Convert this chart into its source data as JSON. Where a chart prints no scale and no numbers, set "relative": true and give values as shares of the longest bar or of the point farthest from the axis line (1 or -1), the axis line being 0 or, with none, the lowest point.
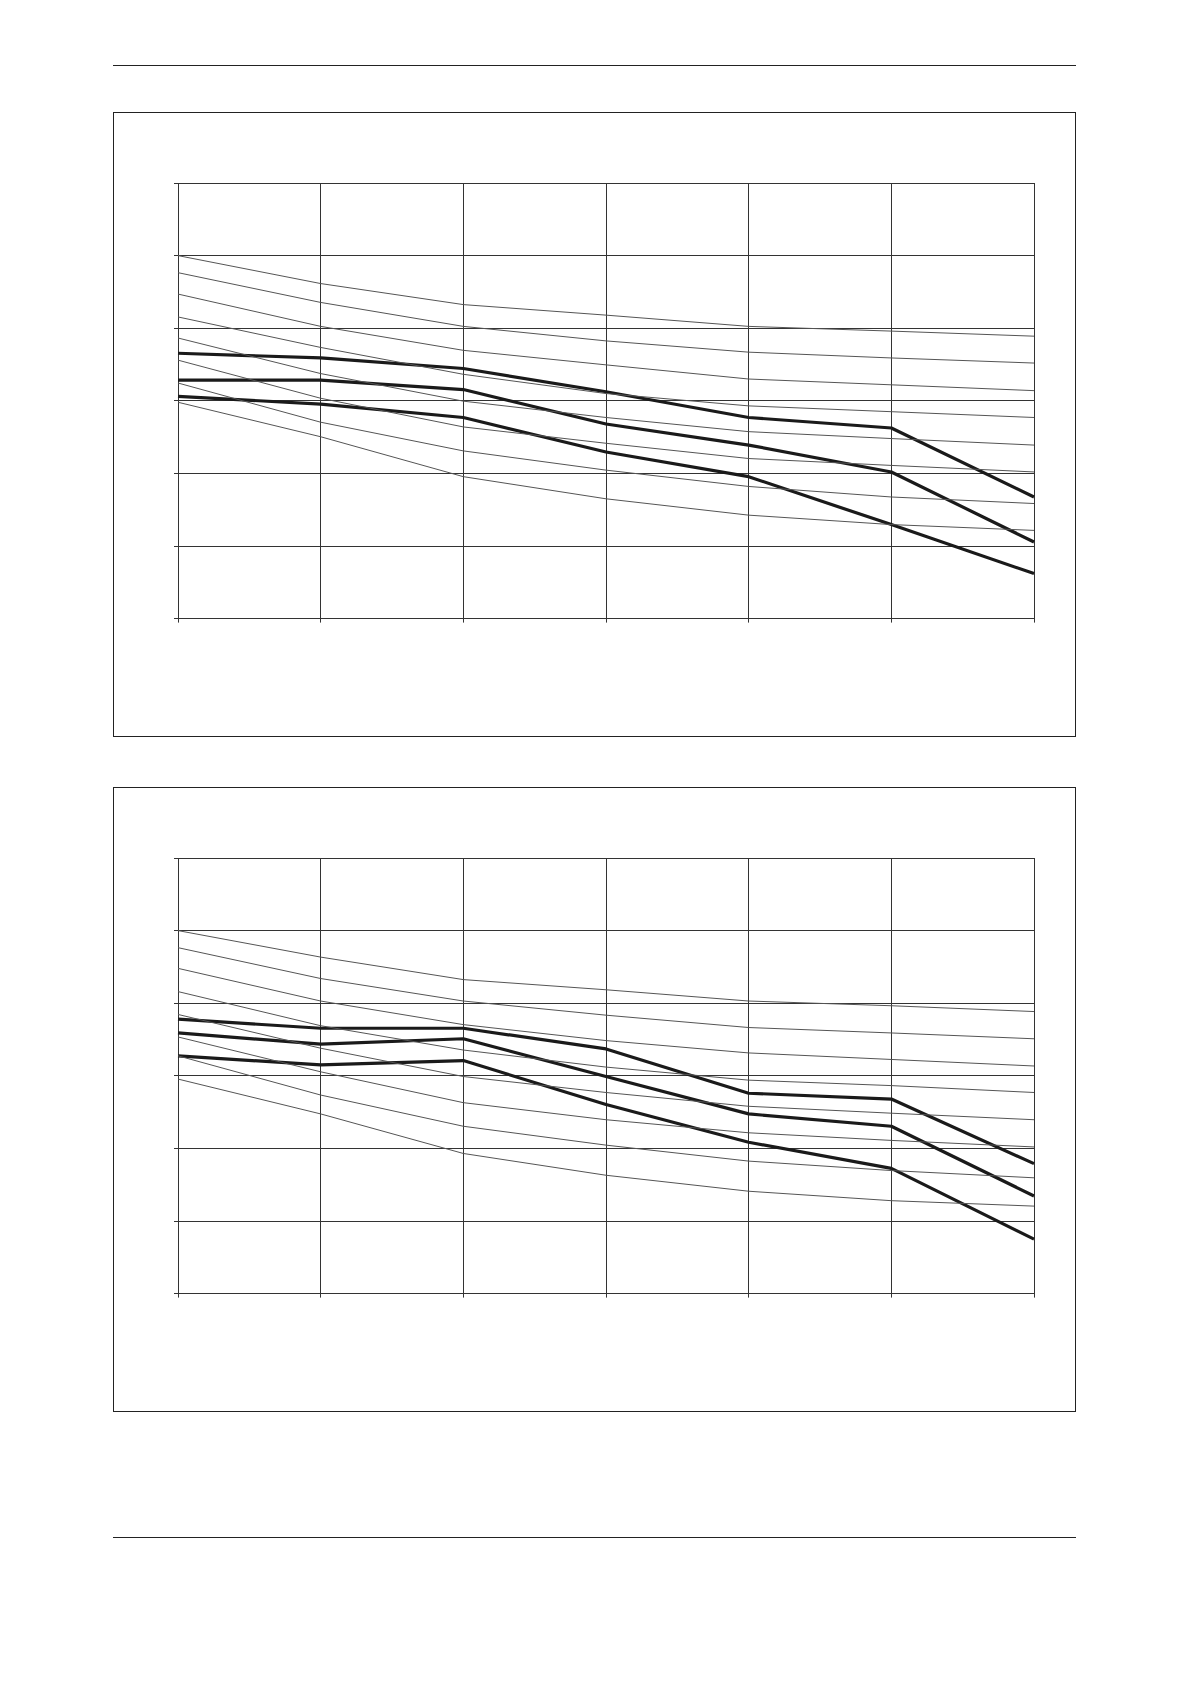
{
  "chart_data": [
    {
      "type": "line",
      "relative": true,
      "grid": true,
      "legend": false,
      "marker": "none",
      "line_style": "solid",
      "categories": [
        null,
        null,
        null,
        null,
        null,
        null,
        null
      ],
      "series": [
        {
          "color": "#555555",
          "values": [
            1,
            0.923,
            0.865,
            0.836,
            0.805,
            0.792,
            0.778
          ]
        },
        {
          "color": "#555555",
          "values": [
            0.953,
            0.871,
            0.805,
            0.765,
            0.734,
            0.718,
            0.704
          ]
        },
        {
          "color": "#555555",
          "values": [
            0.894,
            0.805,
            0.739,
            0.699,
            0.66,
            0.644,
            0.628
          ]
        },
        {
          "color": "#555555",
          "values": [
            0.831,
            0.747,
            0.673,
            0.62,
            0.586,
            0.57,
            0.554
          ]
        },
        {
          "color": "#555555",
          "values": [
            0.773,
            0.675,
            0.599,
            0.554,
            0.515,
            0.496,
            0.478
          ]
        },
        {
          "color": "#555555",
          "values": [
            0.712,
            0.607,
            0.528,
            0.483,
            0.441,
            0.422,
            0.404
          ]
        },
        {
          "color": "#555555",
          "values": [
            0.649,
            0.541,
            0.462,
            0.409,
            0.364,
            0.335,
            0.317
          ]
        },
        {
          "color": "#555555",
          "values": [
            0.596,
            0.501,
            0.391,
            0.33,
            0.285,
            0.259,
            0.243
          ]
        },
        {
          "color": "#1a1a1a",
          "values": [
            0.731,
            0.718,
            0.689,
            0.625,
            0.554,
            0.525,
            0.335
          ]
        },
        {
          "color": "#1a1a1a",
          "values": [
            0.657,
            0.657,
            0.631,
            0.536,
            0.478,
            0.404,
            0.211
          ]
        },
        {
          "color": "#1a1a1a",
          "values": [
            0.612,
            0.591,
            0.554,
            0.459,
            0.391,
            0.259,
            0.124
          ]
        }
      ]
    },
    {
      "type": "line",
      "relative": true,
      "grid": true,
      "legend": false,
      "marker": "none",
      "line_style": "solid",
      "categories": [
        null,
        null,
        null,
        null,
        null,
        null,
        null
      ],
      "series": [
        {
          "color": "#555555",
          "values": [
            1,
            0.927,
            0.865,
            0.837,
            0.806,
            0.793,
            0.777
          ]
        },
        {
          "color": "#555555",
          "values": [
            0.953,
            0.868,
            0.806,
            0.767,
            0.733,
            0.718,
            0.702
          ]
        },
        {
          "color": "#555555",
          "values": [
            0.896,
            0.806,
            0.741,
            0.697,
            0.663,
            0.645,
            0.627
          ]
        },
        {
          "color": "#555555",
          "values": [
            0.832,
            0.738,
            0.671,
            0.624,
            0.588,
            0.573,
            0.554
          ]
        },
        {
          "color": "#555555",
          "values": [
            0.769,
            0.676,
            0.598,
            0.554,
            0.516,
            0.497,
            0.479
          ]
        },
        {
          "color": "#555555",
          "values": [
            0.707,
            0.611,
            0.526,
            0.479,
            0.443,
            0.422,
            0.404
          ]
        },
        {
          "color": "#555555",
          "values": [
            0.655,
            0.547,
            0.461,
            0.409,
            0.365,
            0.339,
            0.319
          ]
        },
        {
          "color": "#555555",
          "values": [
            0.591,
            0.495,
            0.386,
            0.326,
            0.282,
            0.256,
            0.241
          ]
        },
        {
          "color": "#1a1a1a",
          "values": [
            0.756,
            0.731,
            0.731,
            0.674,
            0.552,
            0.536,
            0.358
          ]
        },
        {
          "color": "#1a1a1a",
          "values": [
            0.718,
            0.687,
            0.702,
            0.598,
            0.495,
            0.461,
            0.269
          ]
        },
        {
          "color": "#1a1a1a",
          "values": [
            0.655,
            0.63,
            0.642,
            0.521,
            0.417,
            0.345,
            0.15
          ]
        }
      ]
    }
  ]
}
